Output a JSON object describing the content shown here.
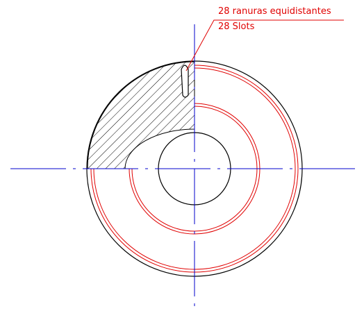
{
  "annotation": {
    "line1": "28 ranuras equidistantes",
    "line2": "28 Slots"
  }
}
